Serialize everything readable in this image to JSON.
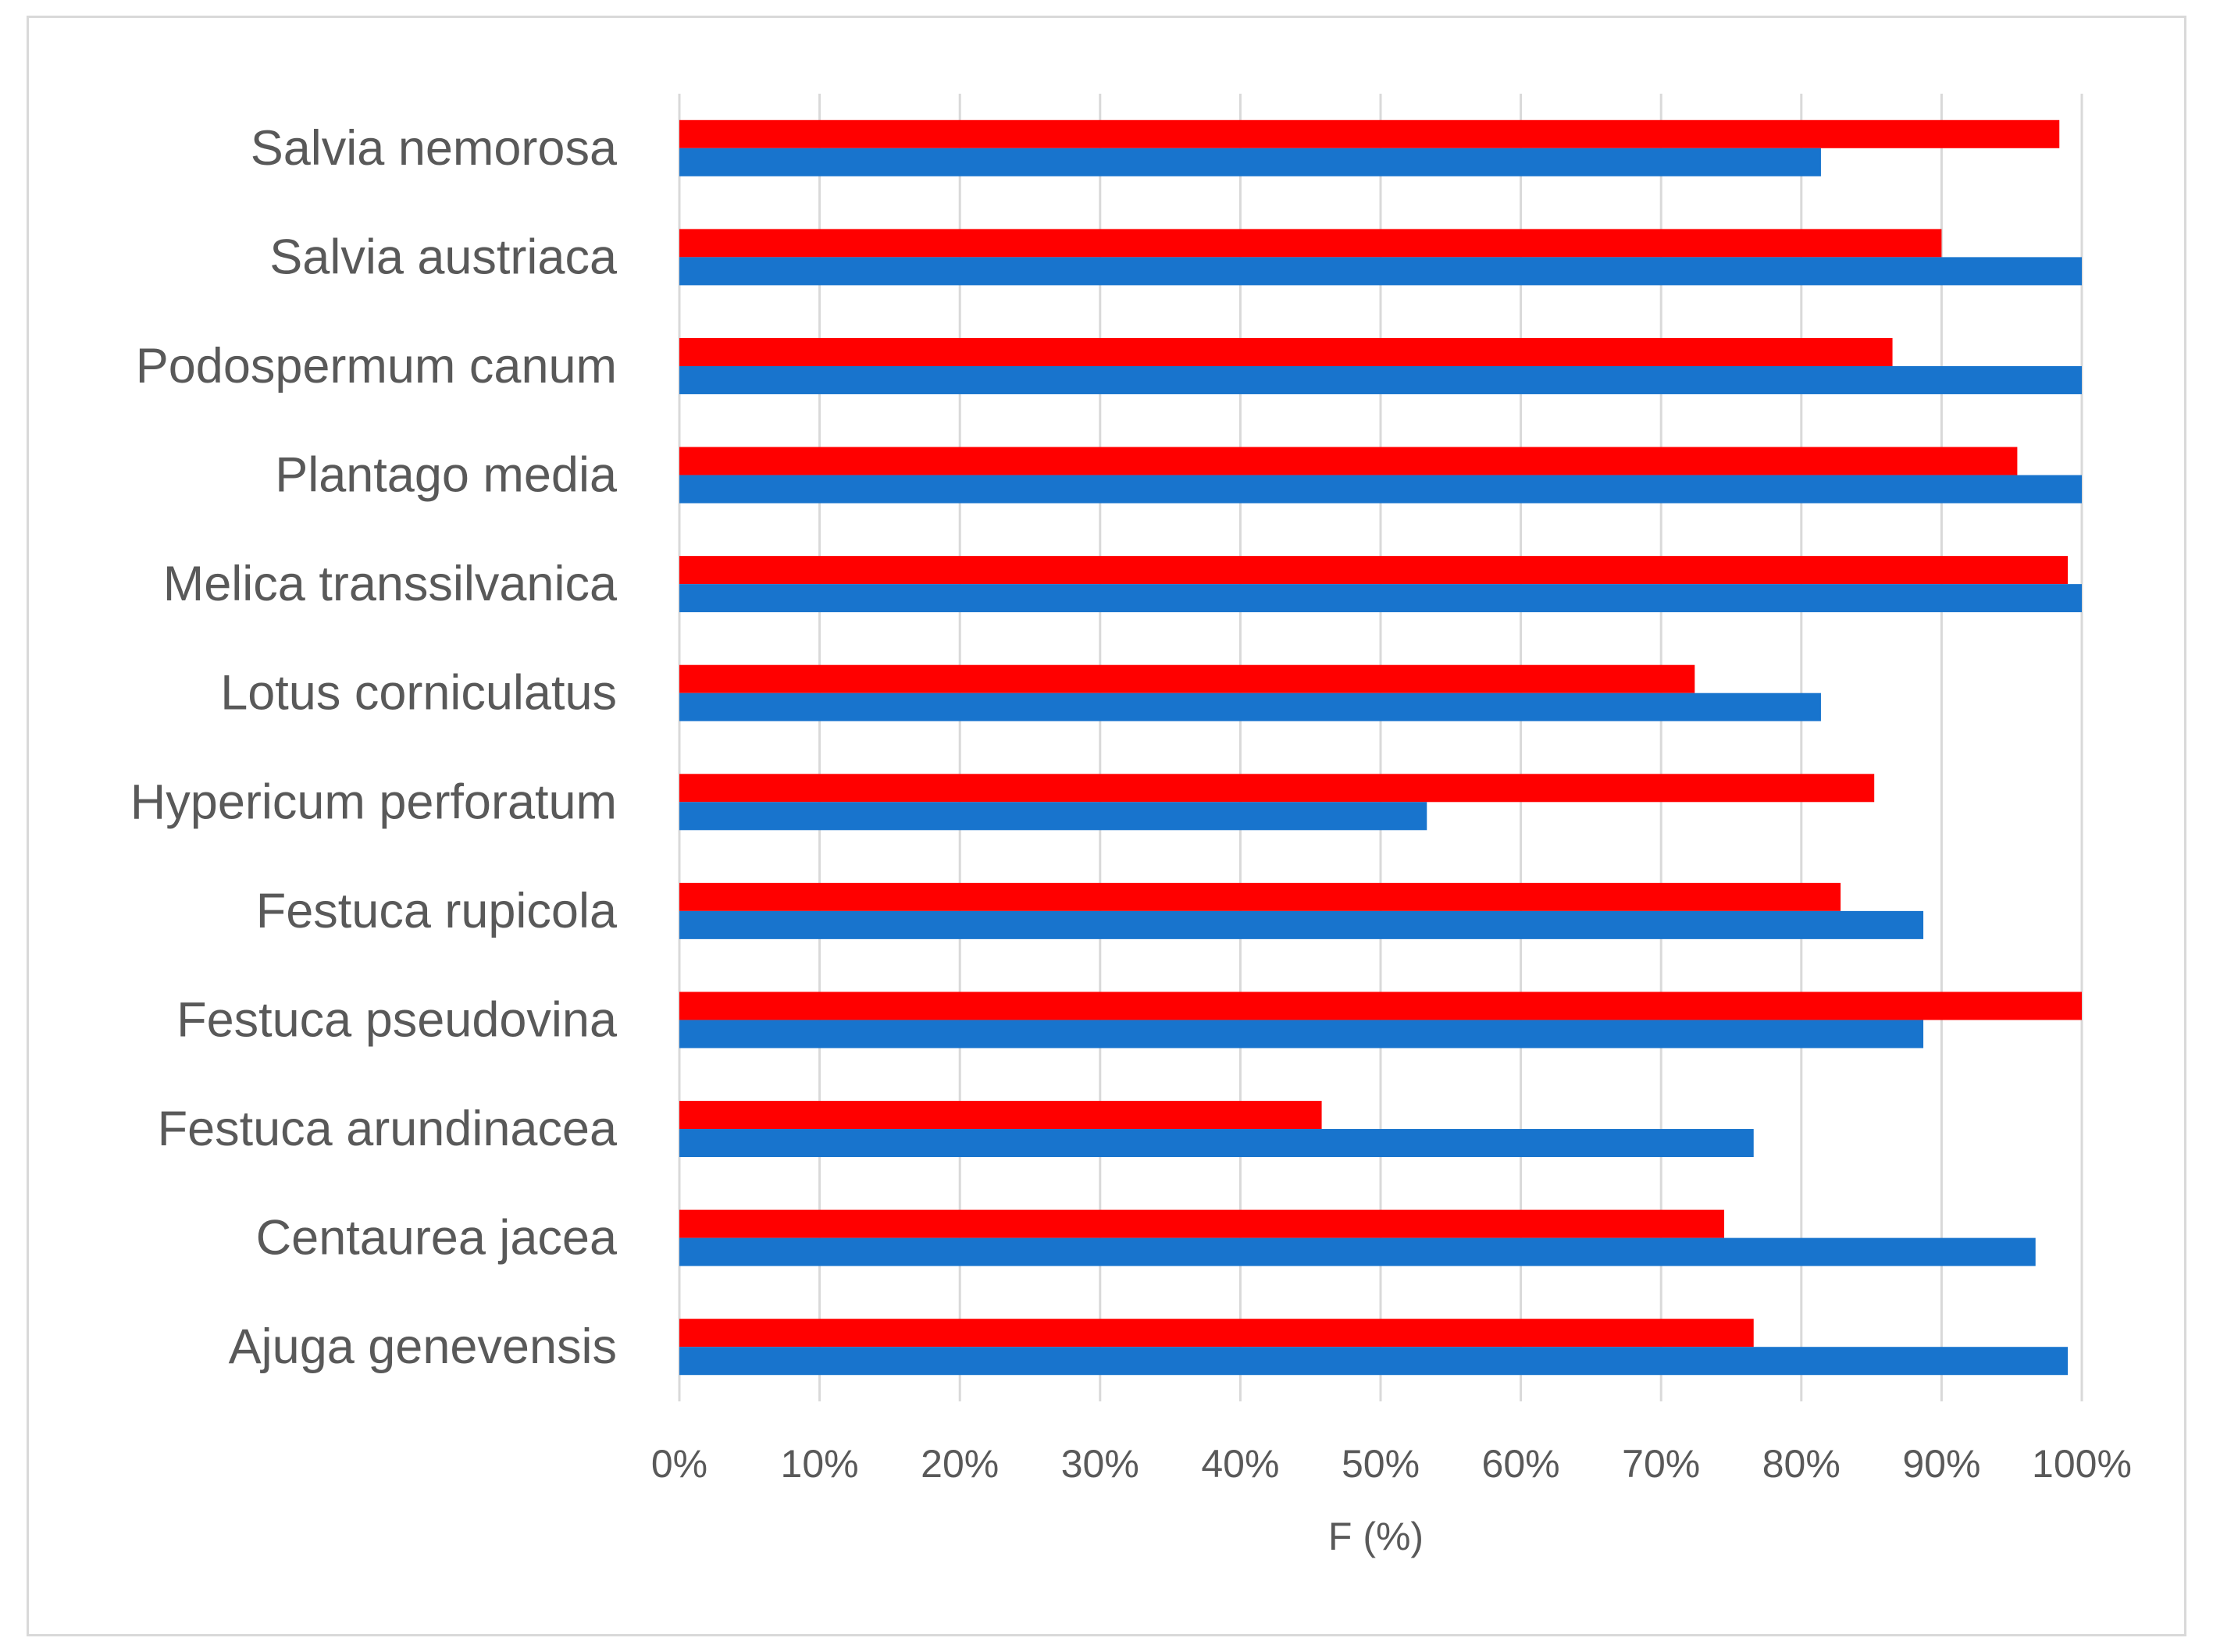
{
  "chart_data": {
    "type": "bar",
    "orientation": "horizontal",
    "categories": [
      "Salvia nemorosa",
      "Salvia austriaca",
      "Podospermum canum",
      "Plantago media",
      "Melica transsilvanica",
      "Lotus corniculatus",
      "Hypericum perforatum",
      "Festuca rupicola",
      "Festuca pseudovina",
      "Festuca arundinacea",
      "Centaurea jacea",
      "Ajuga genevensis"
    ],
    "series": [
      {
        "color": "#ff0000",
        "values": [
          98.4,
          90.0,
          86.5,
          95.4,
          99.0,
          72.4,
          85.2,
          82.8,
          100.0,
          45.8,
          74.5,
          76.6
        ]
      },
      {
        "color": "#1874cd",
        "values": [
          81.4,
          100.0,
          100.0,
          100.0,
          100.0,
          81.4,
          53.3,
          88.7,
          88.7,
          76.6,
          96.7,
          99.0
        ]
      }
    ],
    "xlabel": "F (%)",
    "ylabel": "",
    "title": "",
    "xlim": [
      0,
      100
    ],
    "x_ticks": [
      "0%",
      "10%",
      "20%",
      "30%",
      "40%",
      "50%",
      "60%",
      "70%",
      "80%",
      "90%",
      "100%"
    ],
    "grid": "vertical",
    "legend": "none"
  }
}
